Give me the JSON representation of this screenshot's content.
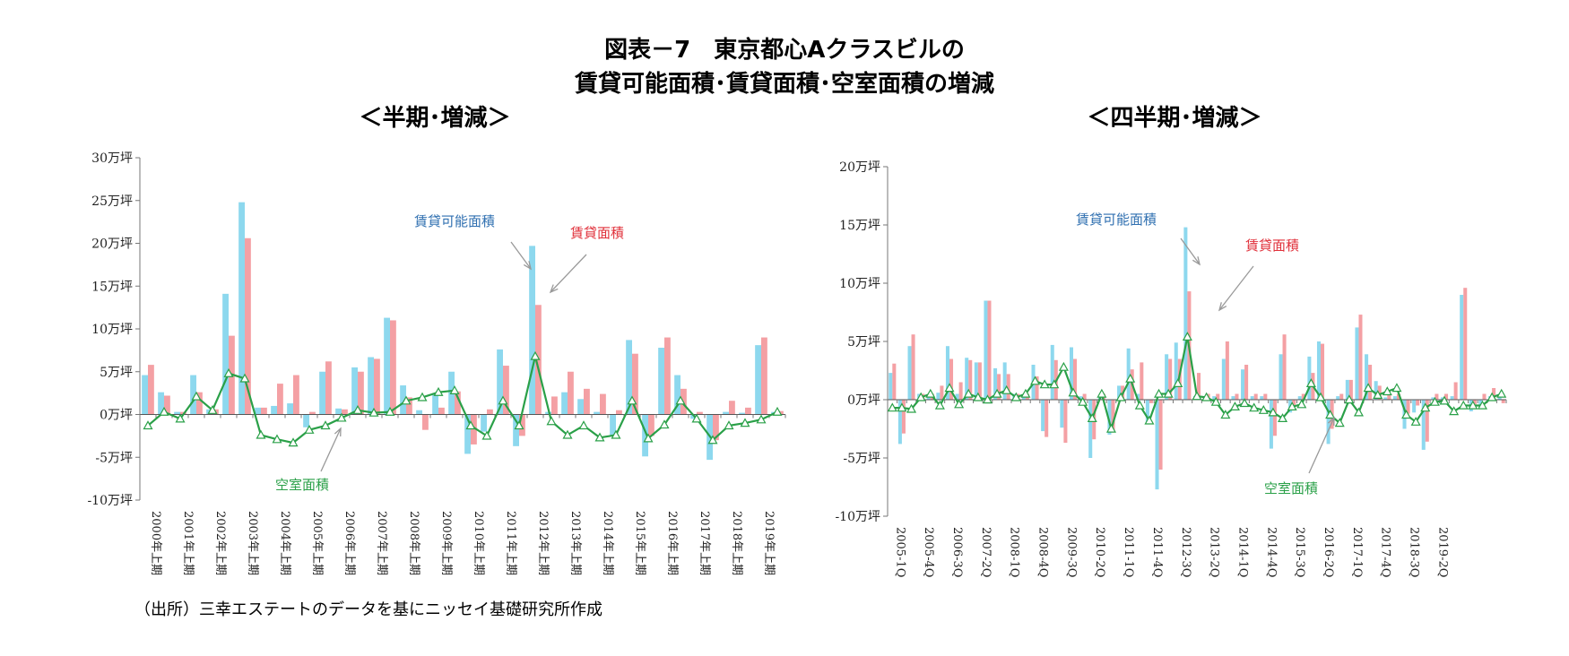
{
  "title_line1": "図表－7　東京都心Aクラスビルの",
  "title_line2": "賃貸可能面積･賃貸面積･空室面積の増減",
  "source": "（出所）三幸エステートのデータを基にニッセイ基礎研究所作成",
  "colors": {
    "available": "#8dd8ee",
    "leased": "#f4a0a4",
    "vacancy": "#2aa048",
    "available_text": "#2f6fb0",
    "leased_text": "#e0303a",
    "vacancy_text": "#2aa048"
  },
  "chart_data": [
    {
      "type": "bar",
      "title": "＜半期･増減＞",
      "y_ticks": [
        "30万坪",
        "25万坪",
        "20万坪",
        "15万坪",
        "10万坪",
        "5万坪",
        "0万坪",
        "-5万坪",
        "-10万坪"
      ],
      "ylim": [
        -10,
        30
      ],
      "x_tick_labels": [
        "2000年上期",
        "2001年上期",
        "2002年上期",
        "2003年上期",
        "2004年上期",
        "2005年上期",
        "2006年上期",
        "2007年上期",
        "2008年上期",
        "2009年上期",
        "2010年上期",
        "2011年上期",
        "2012年上期",
        "2013年上期",
        "2014年上期",
        "2015年上期",
        "2016年上期",
        "2017年上期",
        "2018年上期",
        "2019年上期"
      ],
      "legend_labels": [
        "賃貸可能面積",
        "賃貸面積",
        "空室面積"
      ],
      "series": [
        {
          "name": "賃貸可能面積",
          "values": [
            4.6,
            2.6,
            0.3,
            4.6,
            0.6,
            14.1,
            24.8,
            0.8,
            1.0,
            1.3,
            -1.5,
            5.0,
            0.7,
            5.5,
            6.7,
            11.3,
            3.4,
            0.5,
            2.5,
            5.0,
            -4.6,
            -2.0,
            7.6,
            -3.7,
            19.7,
            0.3,
            2.6,
            1.8,
            0.3,
            -2.4,
            8.7,
            -4.9,
            7.8,
            4.6,
            -0.5,
            -5.3,
            0.3,
            0.2,
            8.1,
            0.3
          ]
        },
        {
          "name": "賃貸面積",
          "values": [
            5.8,
            2.2,
            0.3,
            2.6,
            0.6,
            9.2,
            20.6,
            0.8,
            3.6,
            4.6,
            0.3,
            6.2,
            0.6,
            5.0,
            6.5,
            11.0,
            2.0,
            -1.8,
            0.8,
            2.7,
            -3.5,
            0.6,
            5.7,
            -2.5,
            12.8,
            2.1,
            5.0,
            3.0,
            2.4,
            0.5,
            7.1,
            -2.5,
            9.0,
            3.0,
            0.3,
            -3.0,
            1.6,
            0.8,
            9.0,
            0.4
          ]
        },
        {
          "name": "空室面積",
          "values": [
            -1.3,
            0.3,
            -0.5,
            2.1,
            0.5,
            4.8,
            4.2,
            -2.4,
            -2.9,
            -3.3,
            -1.8,
            -1.3,
            -0.4,
            0.5,
            0.2,
            0.3,
            1.6,
            2.0,
            2.6,
            2.8,
            -1.3,
            -2.5,
            1.6,
            -1.3,
            6.8,
            -0.8,
            -2.4,
            -1.3,
            -2.7,
            -2.4,
            1.6,
            -2.8,
            -1.2,
            1.6,
            -0.5,
            -3.0,
            -1.3,
            -1.0,
            -0.6,
            0.3
          ]
        }
      ]
    },
    {
      "type": "bar",
      "title": "＜四半期･増減＞",
      "y_ticks": [
        "20万坪",
        "15万坪",
        "10万坪",
        "5万坪",
        "0万坪",
        "-5万坪",
        "-10万坪"
      ],
      "ylim": [
        -10,
        20
      ],
      "x_tick_labels": [
        "2005-1Q",
        "2005-4Q",
        "2006-3Q",
        "2007-2Q",
        "2008-1Q",
        "2008-4Q",
        "2009-3Q",
        "2010-2Q",
        "2011-1Q",
        "2011-4Q",
        "2012-3Q",
        "2013-2Q",
        "2014-1Q",
        "2014-4Q",
        "2015-3Q",
        "2016-2Q",
        "2017-1Q",
        "2017-4Q",
        "2018-3Q",
        "2019-2Q"
      ],
      "legend_labels": [
        "賃貸可能面積",
        "賃貸面積",
        "空室面積"
      ],
      "series": [
        {
          "name": "賃貸可能面積",
          "values": [
            2.3,
            -3.8,
            4.6,
            0.5,
            0.3,
            0.6,
            4.6,
            0.5,
            3.6,
            3.2,
            8.5,
            2.7,
            3.2,
            0.5,
            0.3,
            3.0,
            -2.7,
            4.7,
            -2.4,
            4.5,
            0.3,
            -5.0,
            0.3,
            -3.0,
            1.2,
            4.4,
            0.5,
            -2.1,
            -7.7,
            3.9,
            4.9,
            14.8,
            0.3,
            0.3,
            0.3,
            3.5,
            0.3,
            2.6,
            0.3,
            0.3,
            -4.2,
            3.9,
            -1.1,
            0.3,
            3.7,
            5.0,
            -3.8,
            0.3,
            1.7,
            6.2,
            3.9,
            1.6,
            0.2,
            0.3,
            -2.5,
            -1.1,
            -4.3,
            0.2,
            0.2,
            0.3,
            9.0,
            -1.0,
            -0.5,
            0.3,
            0.2
          ]
        },
        {
          "name": "賃貸面積",
          "values": [
            3.1,
            -2.9,
            5.6,
            0.5,
            0.5,
            1.2,
            3.5,
            1.5,
            3.4,
            3.2,
            8.5,
            2.2,
            2.2,
            0.5,
            0.5,
            2.0,
            -3.2,
            3.4,
            -3.7,
            3.5,
            0.5,
            -3.4,
            0.5,
            -2.6,
            1.2,
            2.6,
            3.2,
            -0.3,
            -6.0,
            3.5,
            3.5,
            9.3,
            2.3,
            0.5,
            0.5,
            5.0,
            0.5,
            3.0,
            0.5,
            0.5,
            -3.1,
            5.6,
            -0.5,
            0.5,
            2.3,
            4.8,
            -2.5,
            0.5,
            1.7,
            7.3,
            3.0,
            1.2,
            0.5,
            0.5,
            -1.2,
            -0.5,
            -3.6,
            0.5,
            0.5,
            1.5,
            9.6,
            -0.4,
            0.5,
            1.0,
            -0.3
          ]
        },
        {
          "name": "空室面積",
          "values": [
            -0.7,
            -0.7,
            -0.8,
            0.2,
            0.5,
            -0.5,
            1.0,
            -0.4,
            0.5,
            0.2,
            0.0,
            0.5,
            0.8,
            0.2,
            0.5,
            1.6,
            1.3,
            1.3,
            2.8,
            0.6,
            -0.2,
            -1.6,
            0.5,
            -2.5,
            0.2,
            1.8,
            -0.5,
            -1.8,
            0.5,
            0.5,
            1.4,
            5.4,
            0.3,
            0.2,
            -0.2,
            -1.3,
            -0.6,
            -0.3,
            -0.7,
            -0.9,
            -1.1,
            -1.6,
            -0.6,
            -0.4,
            1.4,
            0.2,
            -1.3,
            -2.0,
            0.0,
            -1.1,
            1.0,
            0.4,
            0.7,
            1.0,
            -1.3,
            -1.9,
            -0.7,
            -0.2,
            -0.1,
            -1.0,
            -0.5,
            -0.5,
            -0.5,
            0.2,
            0.5
          ]
        }
      ]
    }
  ]
}
